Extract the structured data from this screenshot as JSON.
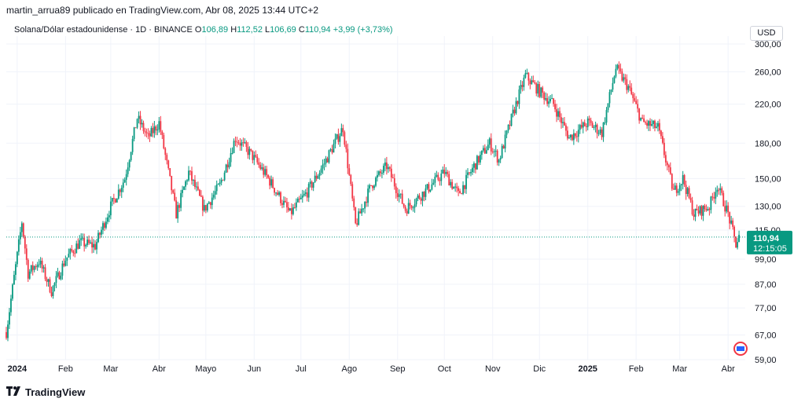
{
  "header": {
    "text": "martin_arrua89 publicado en TradingView.com, Abr 08, 2025 13:44 UTC+2"
  },
  "legend": {
    "symbol": "Solana/Dólar estadounidense · 1D · BINANCE",
    "open_label": "O",
    "open": "106,89",
    "high_label": "H",
    "high": "112,52",
    "low_label": "L",
    "low": "106,69",
    "close_label": "C",
    "close": "110,94",
    "change": "+3,99 (+3,73%)"
  },
  "currency": "USD",
  "price_tag": {
    "price": "110,94",
    "countdown": "12:15:05"
  },
  "colors": {
    "up": "#089981",
    "down": "#f23645",
    "grid": "#f0f3fa",
    "axis_text": "#131722"
  },
  "footer": {
    "brand": "TradingView"
  },
  "chart_data": {
    "type": "candlestick",
    "title": "Solana/Dólar estadounidense · 1D · BINANCE",
    "scale": "log",
    "ylim": [
      59,
      300
    ],
    "y_ticks": [
      "300,00",
      "260,00",
      "220,00",
      "180,00",
      "150,00",
      "130,00",
      "115,00",
      "99,00",
      "87,00",
      "77,00",
      "67,00",
      "59,00"
    ],
    "y_tick_values": [
      300,
      260,
      220,
      180,
      150,
      130,
      115,
      99,
      87,
      77,
      67,
      59
    ],
    "x_ticks": [
      "2024",
      "Feb",
      "Mar",
      "Abr",
      "Mayo",
      "Jun",
      "Jul",
      "Ago",
      "Sep",
      "Oct",
      "Nov",
      "Dic",
      "2025",
      "Feb",
      "Mar",
      "Abr"
    ],
    "x_tick_dates": [
      "2024-01-01",
      "2024-02-01",
      "2024-03-01",
      "2024-04-01",
      "2024-05-01",
      "2024-06-01",
      "2024-07-01",
      "2024-08-01",
      "2024-09-01",
      "2024-10-01",
      "2024-11-01",
      "2024-12-01",
      "2025-01-01",
      "2025-02-01",
      "2025-03-01",
      "2025-04-01"
    ],
    "last_price": 110.94,
    "path_points": [
      [
        "2023-12-25",
        68
      ],
      [
        "2024-01-01",
        101
      ],
      [
        "2024-01-04",
        120
      ],
      [
        "2024-01-08",
        92
      ],
      [
        "2024-01-15",
        98
      ],
      [
        "2024-01-23",
        84
      ],
      [
        "2024-02-01",
        99
      ],
      [
        "2024-02-10",
        108
      ],
      [
        "2024-02-20",
        106
      ],
      [
        "2024-03-01",
        130
      ],
      [
        "2024-03-10",
        150
      ],
      [
        "2024-03-18",
        205
      ],
      [
        "2024-03-25",
        185
      ],
      [
        "2024-04-01",
        200
      ],
      [
        "2024-04-12",
        125
      ],
      [
        "2024-04-20",
        155
      ],
      [
        "2024-04-30",
        128
      ],
      [
        "2024-05-10",
        145
      ],
      [
        "2024-05-20",
        185
      ],
      [
        "2024-05-30",
        170
      ],
      [
        "2024-06-10",
        150
      ],
      [
        "2024-06-24",
        125
      ],
      [
        "2024-07-05",
        140
      ],
      [
        "2024-07-15",
        160
      ],
      [
        "2024-07-28",
        195
      ],
      [
        "2024-08-05",
        118
      ],
      [
        "2024-08-15",
        145
      ],
      [
        "2024-08-25",
        160
      ],
      [
        "2024-09-06",
        128
      ],
      [
        "2024-09-20",
        142
      ],
      [
        "2024-10-01",
        155
      ],
      [
        "2024-10-10",
        138
      ],
      [
        "2024-10-20",
        160
      ],
      [
        "2024-10-30",
        180
      ],
      [
        "2024-11-05",
        165
      ],
      [
        "2024-11-15",
        215
      ],
      [
        "2024-11-22",
        255
      ],
      [
        "2024-12-01",
        235
      ],
      [
        "2024-12-10",
        220
      ],
      [
        "2024-12-20",
        185
      ],
      [
        "2025-01-01",
        200
      ],
      [
        "2025-01-10",
        190
      ],
      [
        "2025-01-19",
        265
      ],
      [
        "2025-01-27",
        240
      ],
      [
        "2025-02-05",
        200
      ],
      [
        "2025-02-15",
        195
      ],
      [
        "2025-02-25",
        140
      ],
      [
        "2025-03-03",
        150
      ],
      [
        "2025-03-10",
        125
      ],
      [
        "2025-03-20",
        130
      ],
      [
        "2025-03-25",
        145
      ],
      [
        "2025-04-01",
        125
      ],
      [
        "2025-04-06",
        106.89
      ],
      [
        "2025-04-08",
        110.94
      ]
    ]
  }
}
